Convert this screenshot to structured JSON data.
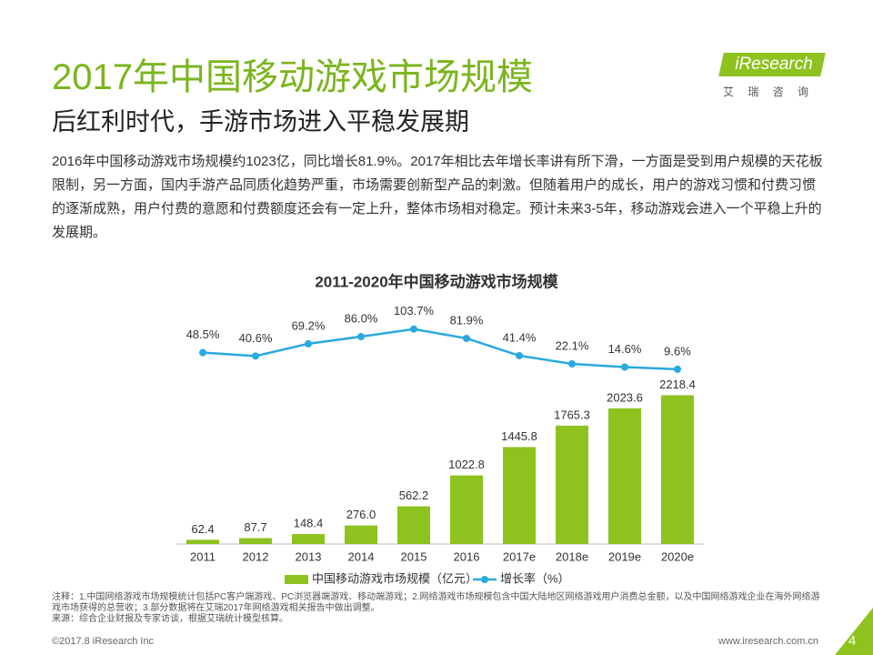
{
  "logo": {
    "brand": "iResearch",
    "subtitle": "艾 瑞 咨 询"
  },
  "header": {
    "title": "2017年中国移动游戏市场规模",
    "subtitle": "后红利时代，手游市场进入平稳发展期"
  },
  "paragraph": "2016年中国移动游戏市场规模约1023亿，同比增长81.9%。2017年相比去年增长率讲有所下滑，一方面是受到用户规模的天花板限制，另一方面，国内手游产品同质化趋势严重，市场需要创新型产品的刺激。但随着用户的成长，用户的游戏习惯和付费习惯的逐渐成熟，用户付费的意愿和付费额度还会有一定上升，整体市场相对稳定。预计未来3-5年，移动游戏会进入一个平稳上升的发展期。",
  "chart_data": {
    "type": "bar",
    "title": "2011-2020年中国移动游戏市场规模",
    "categories": [
      "2011",
      "2012",
      "2013",
      "2014",
      "2015",
      "2016",
      "2017e",
      "2018e",
      "2019e",
      "2020e"
    ],
    "series": [
      {
        "name": "中国移动游戏市场规模（亿元）",
        "color": "#8dc21f",
        "values": [
          62.4,
          87.7,
          148.4,
          276.0,
          562.2,
          1022.8,
          1445.8,
          1765.3,
          2023.6,
          2218.4
        ],
        "value_labels": [
          "62.4",
          "87.7",
          "148.4",
          "276.0",
          "562.2",
          "1022.8",
          "1445.8",
          "1765.3",
          "2023.6",
          "2218.4"
        ]
      },
      {
        "name": "增长率（%）",
        "color": "#29a9e0",
        "type": "line",
        "axis": "y2",
        "values": [
          48.5,
          40.6,
          69.2,
          86.0,
          103.7,
          81.9,
          41.4,
          22.1,
          14.6,
          9.6
        ],
        "value_labels": [
          "48.5%",
          "40.6%",
          "69.2%",
          "86.0%",
          "103.7%",
          "81.9%",
          "41.4%",
          "22.1%",
          "14.6%",
          "9.6%"
        ]
      }
    ],
    "ylim": [
      0,
      3500
    ],
    "y2lim": [
      -400,
      150
    ]
  },
  "notes": [
    "注释：1.中国网络游戏市场规模统计包括PC客户端游戏、PC浏览器端游戏、移动端游戏；2.网络游戏市场规模包含中国大陆地区网络游戏用户消费总金额，以及中国网络游戏企业在海外网络游戏市场获得的总营收；3.部分数据将在艾瑞2017年网络游戏相关报告中做出调整。",
    "来源：综合企业财报及专家访谈，根据艾瑞统计模型核算。"
  ],
  "footer": {
    "copyright": "©2017.8 iResearch Inc",
    "url": "www.iresearch.com.cn",
    "page": 4
  }
}
